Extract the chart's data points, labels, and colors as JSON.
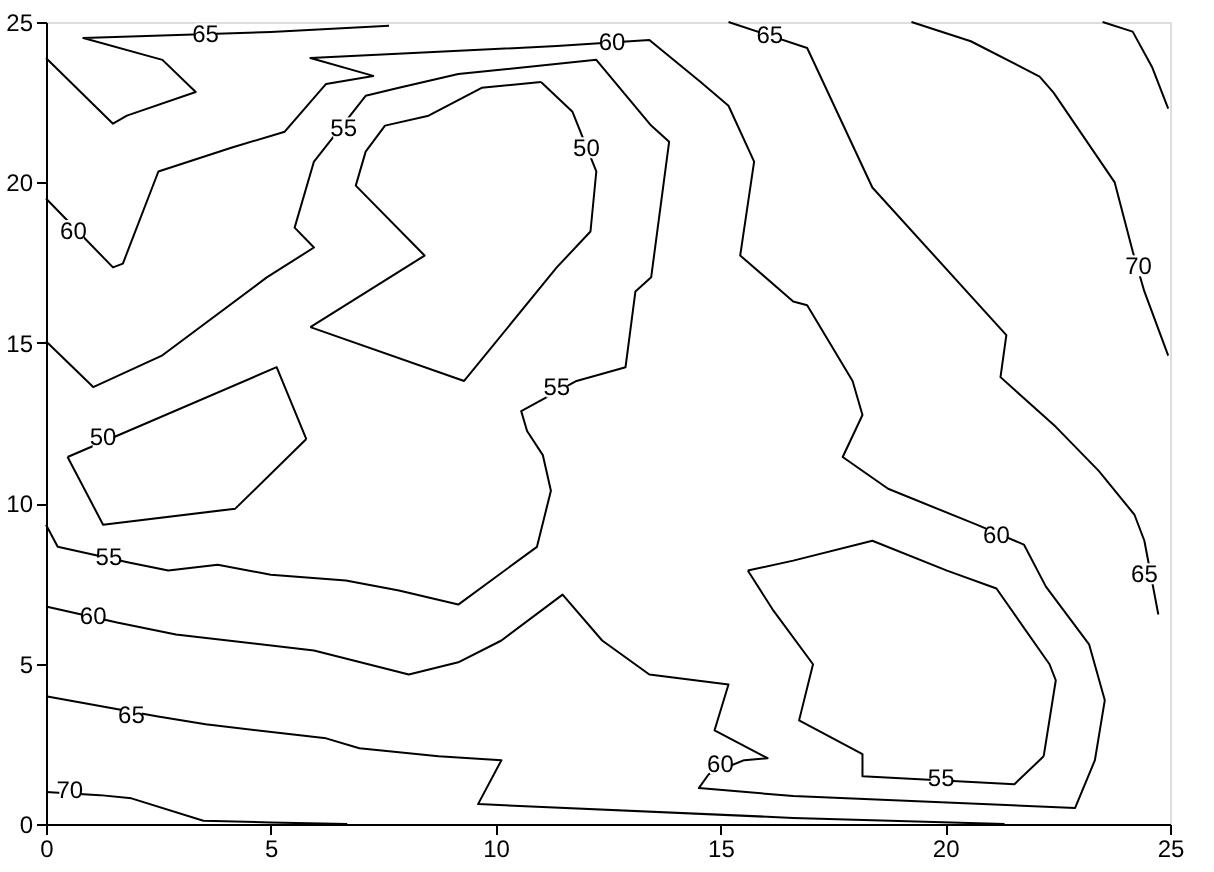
{
  "chart_data": {
    "type": "line",
    "xlim": [
      0,
      25
    ],
    "ylim": [
      0,
      25
    ],
    "xticks": [
      0,
      5,
      10,
      15,
      20,
      25
    ],
    "yticks": [
      0,
      5,
      10,
      15,
      20,
      25
    ],
    "grid": false,
    "legend": false,
    "marker": "none",
    "line_style": "solid",
    "series": [
      {
        "color": "#000000",
        "x": [
          0,
          1.2,
          1.9,
          3.5,
          5,
          6.7
        ],
        "values": [
          1.0,
          0.9,
          0.8,
          0.1,
          0.05,
          0
        ]
      },
      {
        "color": "#000000",
        "x": [
          0,
          2.46,
          3.55,
          6.23,
          6.97,
          8.73,
          10.13,
          9.61,
          16.62,
          21.32
        ],
        "values": [
          3.98,
          3.36,
          3.11,
          2.67,
          2.36,
          2.11,
          1.99,
          0.62,
          0.19,
          0
        ]
      },
      {
        "color": "#000000",
        "x": [
          19.25,
          20.57,
          22.1,
          22.41,
          23.77,
          24.17,
          24.43,
          24.96
        ],
        "values": [
          25,
          24.4,
          23.3,
          22.8,
          20.0,
          17.85,
          16.6,
          14.6
        ]
      },
      {
        "color": "#000000",
        "x": [
          23.5,
          24.17,
          24.6,
          24.96
        ],
        "values": [
          25,
          24.7,
          23.6,
          22.3
        ]
      },
      {
        "color": "#000000",
        "x": [
          15.18,
          16.93,
          18.38,
          21.36,
          21.23,
          22.46,
          23.42,
          24.21,
          24.43,
          24.74
        ],
        "values": [
          25,
          24.19,
          19.84,
          15.24,
          13.93,
          12.38,
          11.0,
          9.64,
          8.83,
          6.53
        ]
      },
      {
        "color": "#000000",
        "x": [
          0,
          1.49,
          1.8,
          3.33,
          2.59,
          0.83,
          5.0,
          7.63
        ],
        "values": [
          23.88,
          21.83,
          22.08,
          22.82,
          23.82,
          24.5,
          24.69,
          24.88
        ]
      },
      {
        "color": "#000000",
        "x": [
          0,
          1.49,
          1.71,
          2.5,
          4.12,
          5.31,
          6.23,
          7.28,
          5.88,
          8.73,
          11.36,
          13.42,
          14.56,
          15.18,
          15.75,
          15.44,
          16.62,
          16.93,
          17.94,
          18.16,
          17.72,
          18.73,
          20.7,
          21.75,
          22.24,
          23.2,
          23.55,
          23.33,
          22.89,
          16.62,
          14.52,
          14.74,
          15.53,
          16.05,
          14.87,
          15.18,
          13.42,
          12.37,
          11.49,
          10.13,
          9.17,
          8.07,
          5.96,
          2.89,
          1.58,
          0
        ],
        "values": [
          19.5,
          17.35,
          17.47,
          20.34,
          21.08,
          21.58,
          23.07,
          23.32,
          23.88,
          24.07,
          24.25,
          24.44,
          23.13,
          22.39,
          20.65,
          17.72,
          16.29,
          16.17,
          13.81,
          12.75,
          11.44,
          10.45,
          9.33,
          8.71,
          7.4,
          5.6,
          3.86,
          1.99,
          0.5,
          0.87,
          1.12,
          1.55,
          1.99,
          2.05,
          2.92,
          4.35,
          4.66,
          5.72,
          7.15,
          5.72,
          5.04,
          4.66,
          5.41,
          5.91,
          6.28,
          6.78
        ]
      },
      {
        "color": "#000000",
        "x": [
          0,
          1.05,
          2.59,
          4.91,
          5.96,
          5.53,
          5.96,
          7.11,
          7.85,
          9.17,
          12.24,
          13.46,
          13.86,
          13.46,
          13.11,
          12.89,
          11.8,
          10.57,
          10.7,
          11.05,
          11.23,
          10.92,
          9.17,
          7.85,
          6.67,
          5.0,
          3.82,
          2.72,
          1.84,
          0.26,
          0
        ],
        "values": [
          15.05,
          13.62,
          14.61,
          17.04,
          17.97,
          18.59,
          20.65,
          22.7,
          22.95,
          23.38,
          23.82,
          21.77,
          21.27,
          17.04,
          16.6,
          14.24,
          13.81,
          12.87,
          12.25,
          11.5,
          10.39,
          8.64,
          6.84,
          7.28,
          7.59,
          7.77,
          8.08,
          7.9,
          8.15,
          8.64,
          9.33
        ]
      },
      {
        "color": "#000000",
        "x": [
          5.88,
          8.42,
          6.89,
          7.11,
          7.54,
          8.51,
          9.69,
          11.01
        ],
        "values": [
          15.49,
          17.72,
          19.9,
          20.96,
          21.77,
          22.08,
          22.95,
          23.13
        ]
      },
      {
        "color": "#000000",
        "x": [
          11.01,
          11.71,
          12.24,
          12.11,
          11.36,
          9.3,
          5.88
        ],
        "values": [
          23.13,
          22.2,
          20.34,
          18.47,
          17.35,
          13.81,
          15.49
        ]
      },
      {
        "color": "#000000",
        "x": [
          0.48,
          5.13,
          5.79
        ],
        "values": [
          11.44,
          14.24,
          12.0
        ]
      },
      {
        "color": "#000000",
        "x": [
          5.79,
          4.21,
          1.27,
          0.48
        ],
        "values": [
          12.0,
          9.83,
          9.33,
          11.44
        ]
      },
      {
        "color": "#000000",
        "x": [
          15.61,
          16.62,
          18.38,
          20.04,
          21.14,
          22.32,
          22.46,
          22.19
        ],
        "values": [
          7.9,
          8.21,
          8.83,
          7.9,
          7.34,
          4.98,
          4.48,
          2.11
        ]
      },
      {
        "color": "#000000",
        "x": [
          22.19,
          21.54,
          18.16,
          18.16,
          16.75,
          17.06,
          16.18,
          15.61
        ],
        "values": [
          2.11,
          1.24,
          1.49,
          2.18,
          3.23,
          4.98,
          6.65,
          7.9
        ]
      }
    ],
    "annotations": [
      {
        "text": "70",
        "x": 0.53,
        "y": 1.06
      },
      {
        "text": "70",
        "x": 24.3,
        "y": 17.4
      },
      {
        "text": "65",
        "x": 16.1,
        "y": 24.6
      },
      {
        "text": "65",
        "x": 24.43,
        "y": 7.8
      },
      {
        "text": "65",
        "x": 3.55,
        "y": 24.63
      },
      {
        "text": "65",
        "x": 1.9,
        "y": 3.4
      },
      {
        "text": "60",
        "x": 0.61,
        "y": 18.5
      },
      {
        "text": "60",
        "x": 12.59,
        "y": 24.38
      },
      {
        "text": "60",
        "x": 21.14,
        "y": 9.02
      },
      {
        "text": "60",
        "x": 15.0,
        "y": 1.87
      },
      {
        "text": "60",
        "x": 1.05,
        "y": 6.47
      },
      {
        "text": "55",
        "x": 6.62,
        "y": 21.7
      },
      {
        "text": "55",
        "x": 11.36,
        "y": 13.62
      },
      {
        "text": "55",
        "x": 1.4,
        "y": 8.33
      },
      {
        "text": "55",
        "x": 19.91,
        "y": 1.43
      },
      {
        "text": "50",
        "x": 12.02,
        "y": 21.08
      },
      {
        "text": "50",
        "x": 1.27,
        "y": 12.06
      }
    ]
  }
}
